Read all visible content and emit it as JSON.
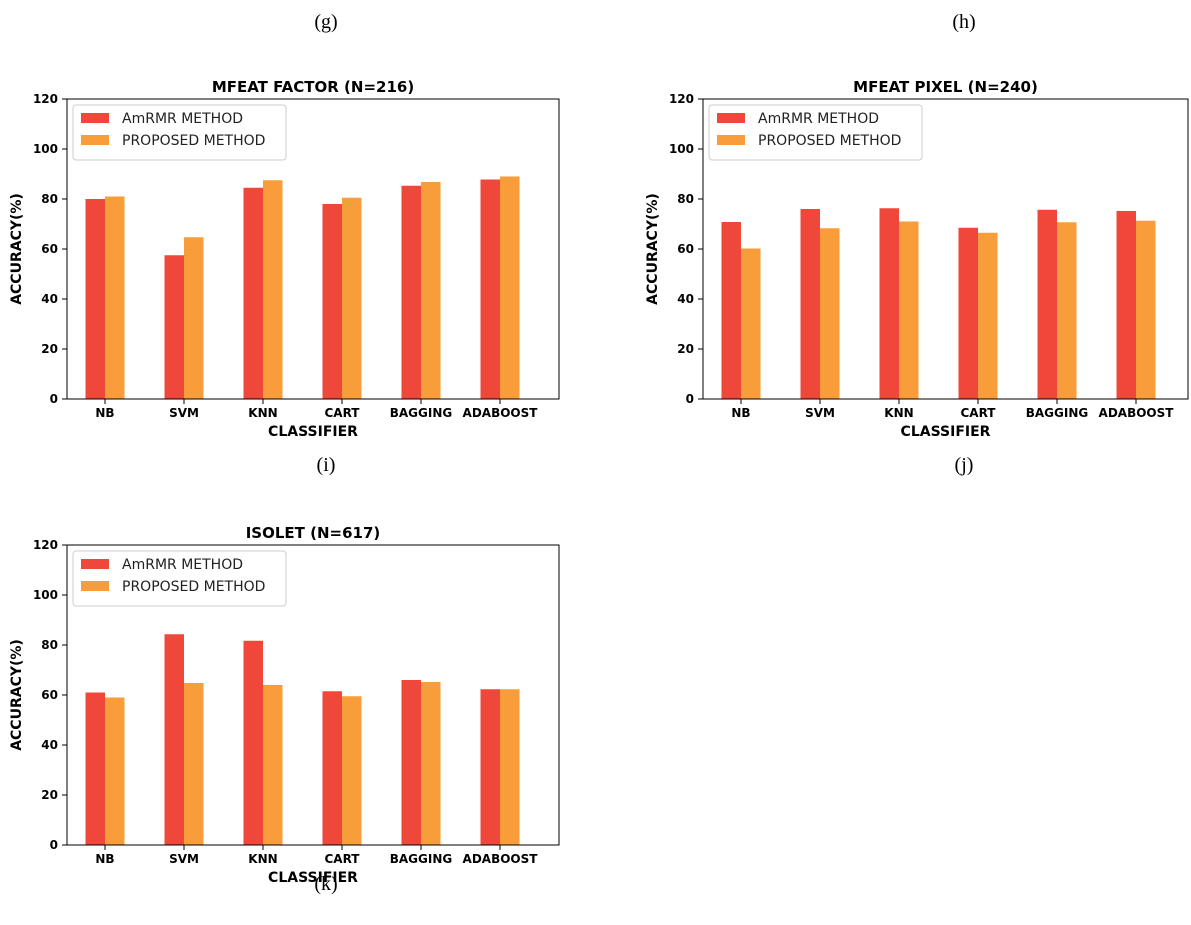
{
  "top_captions": [
    "(g)",
    "(h)"
  ],
  "colors": {
    "series1": "#ef473a",
    "series2": "#f99d3a"
  },
  "chart_data": [
    {
      "type": "bar",
      "caption": "(i)",
      "title": "MFEAT FACTOR (N=216)",
      "xlabel": "CLASSIFIER",
      "ylabel": "ACCURACY(%)",
      "ylim": [
        0,
        120
      ],
      "yticks": [
        0,
        20,
        40,
        60,
        80,
        100,
        120
      ],
      "legend": "top-left",
      "grid": false,
      "categories": [
        "NB",
        "SVM",
        "KNN",
        "CART",
        "BAGGING",
        "ADABOOST"
      ],
      "series": [
        {
          "name": "AmRMR METHOD",
          "values": [
            80,
            57.5,
            84.5,
            78,
            85.3,
            87.8
          ]
        },
        {
          "name": "PROPOSED METHOD",
          "values": [
            81,
            64.7,
            87.5,
            80.5,
            86.8,
            89
          ]
        }
      ]
    },
    {
      "type": "bar",
      "caption": "(j)",
      "title": "MFEAT PIXEL (N=240)",
      "xlabel": "CLASSIFIER",
      "ylabel": "ACCURACY(%)",
      "ylim": [
        0,
        120
      ],
      "yticks": [
        0,
        20,
        40,
        60,
        80,
        100,
        120
      ],
      "legend": "top-left",
      "grid": false,
      "categories": [
        "NB",
        "SVM",
        "KNN",
        "CART",
        "BAGGING",
        "ADABOOST"
      ],
      "series": [
        {
          "name": "AmRMR METHOD",
          "values": [
            70.8,
            76,
            76.3,
            68.5,
            75.7,
            75.2
          ]
        },
        {
          "name": "PROPOSED METHOD",
          "values": [
            60.2,
            68.3,
            71,
            66.5,
            70.7,
            71.3
          ]
        }
      ]
    },
    {
      "type": "bar",
      "caption": "(k)",
      "title": "ISOLET (N=617)",
      "xlabel": "CLASSIFIER",
      "ylabel": "ACCURACY(%)",
      "ylim": [
        0,
        120
      ],
      "yticks": [
        0,
        20,
        40,
        60,
        80,
        100,
        120
      ],
      "legend": "top-left",
      "grid": false,
      "categories": [
        "NB",
        "SVM",
        "KNN",
        "CART",
        "BAGGING",
        "ADABOOST"
      ],
      "series": [
        {
          "name": "AmRMR METHOD",
          "values": [
            61,
            84.3,
            81.7,
            61.5,
            66,
            62.3
          ]
        },
        {
          "name": "PROPOSED METHOD",
          "values": [
            59,
            64.8,
            64,
            59.5,
            65.2,
            62.3
          ]
        }
      ]
    }
  ]
}
